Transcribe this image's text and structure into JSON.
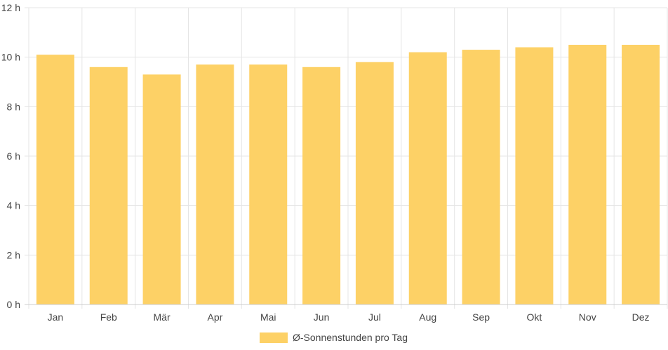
{
  "chart_data": {
    "type": "bar",
    "categories": [
      "Jan",
      "Feb",
      "Mär",
      "Apr",
      "Mai",
      "Jun",
      "Jul",
      "Aug",
      "Sep",
      "Okt",
      "Nov",
      "Dez"
    ],
    "series": [
      {
        "name": "Ø-Sonnenstunden pro Tag",
        "values": [
          10.1,
          9.6,
          9.3,
          9.7,
          9.7,
          9.6,
          9.8,
          10.2,
          10.3,
          10.4,
          10.5,
          10.5
        ],
        "color": "#fdd166"
      }
    ],
    "yticks": [
      "0 h",
      "2 h",
      "4 h",
      "6 h",
      "8 h",
      "10 h",
      "12 h"
    ],
    "ylim": [
      0,
      12
    ],
    "grid": true,
    "legend_position": "bottom",
    "title": "",
    "xlabel": "",
    "ylabel": ""
  }
}
